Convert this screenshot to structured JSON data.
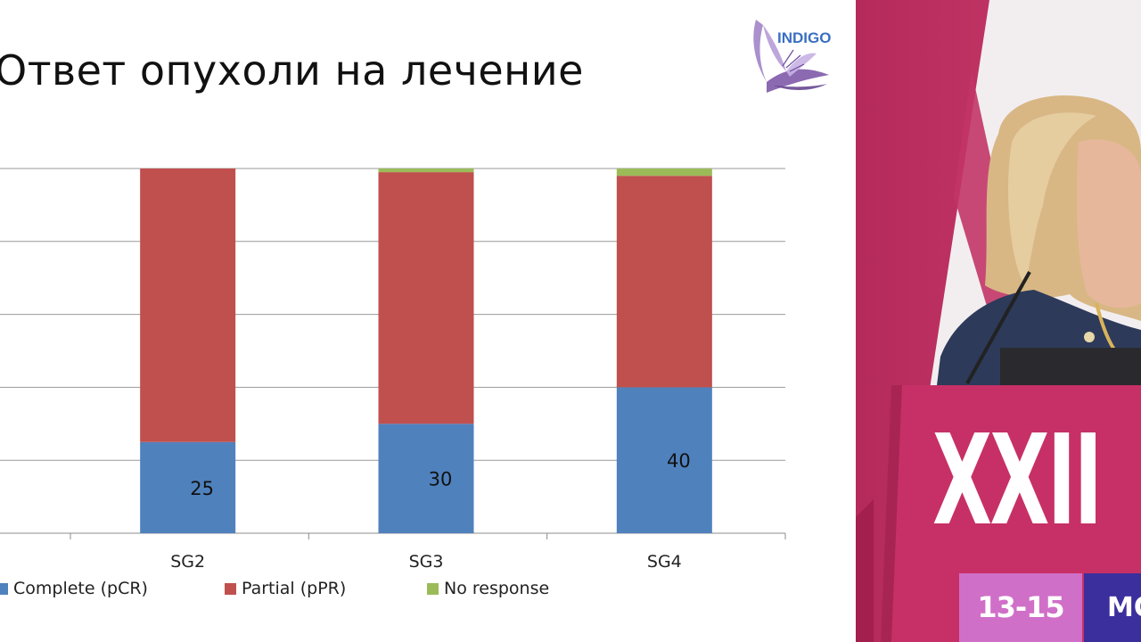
{
  "slide": {
    "title": "Ответ опухоли на лечение",
    "logo_text": "INDIGO"
  },
  "chart_data": {
    "type": "bar",
    "stacked": true,
    "categories": [
      "SG2",
      "SG3",
      "SG4"
    ],
    "series": [
      {
        "name": "Complete (pCR)",
        "color": "#4f81bd",
        "values": [
          25,
          30,
          40
        ],
        "labels": [
          "25",
          "30",
          "40"
        ]
      },
      {
        "name": "Partial (pPR)",
        "color": "#c0504d",
        "values": [
          75,
          69,
          58
        ]
      },
      {
        "name": "No response",
        "color": "#9bbb59",
        "values": [
          0,
          1,
          2
        ]
      }
    ],
    "ylim": [
      0,
      100
    ],
    "grid": true,
    "legend_position": "bottom"
  },
  "stage": {
    "podium_text": "XXII",
    "banner_date": "13-15",
    "banner_city": "МОС"
  }
}
